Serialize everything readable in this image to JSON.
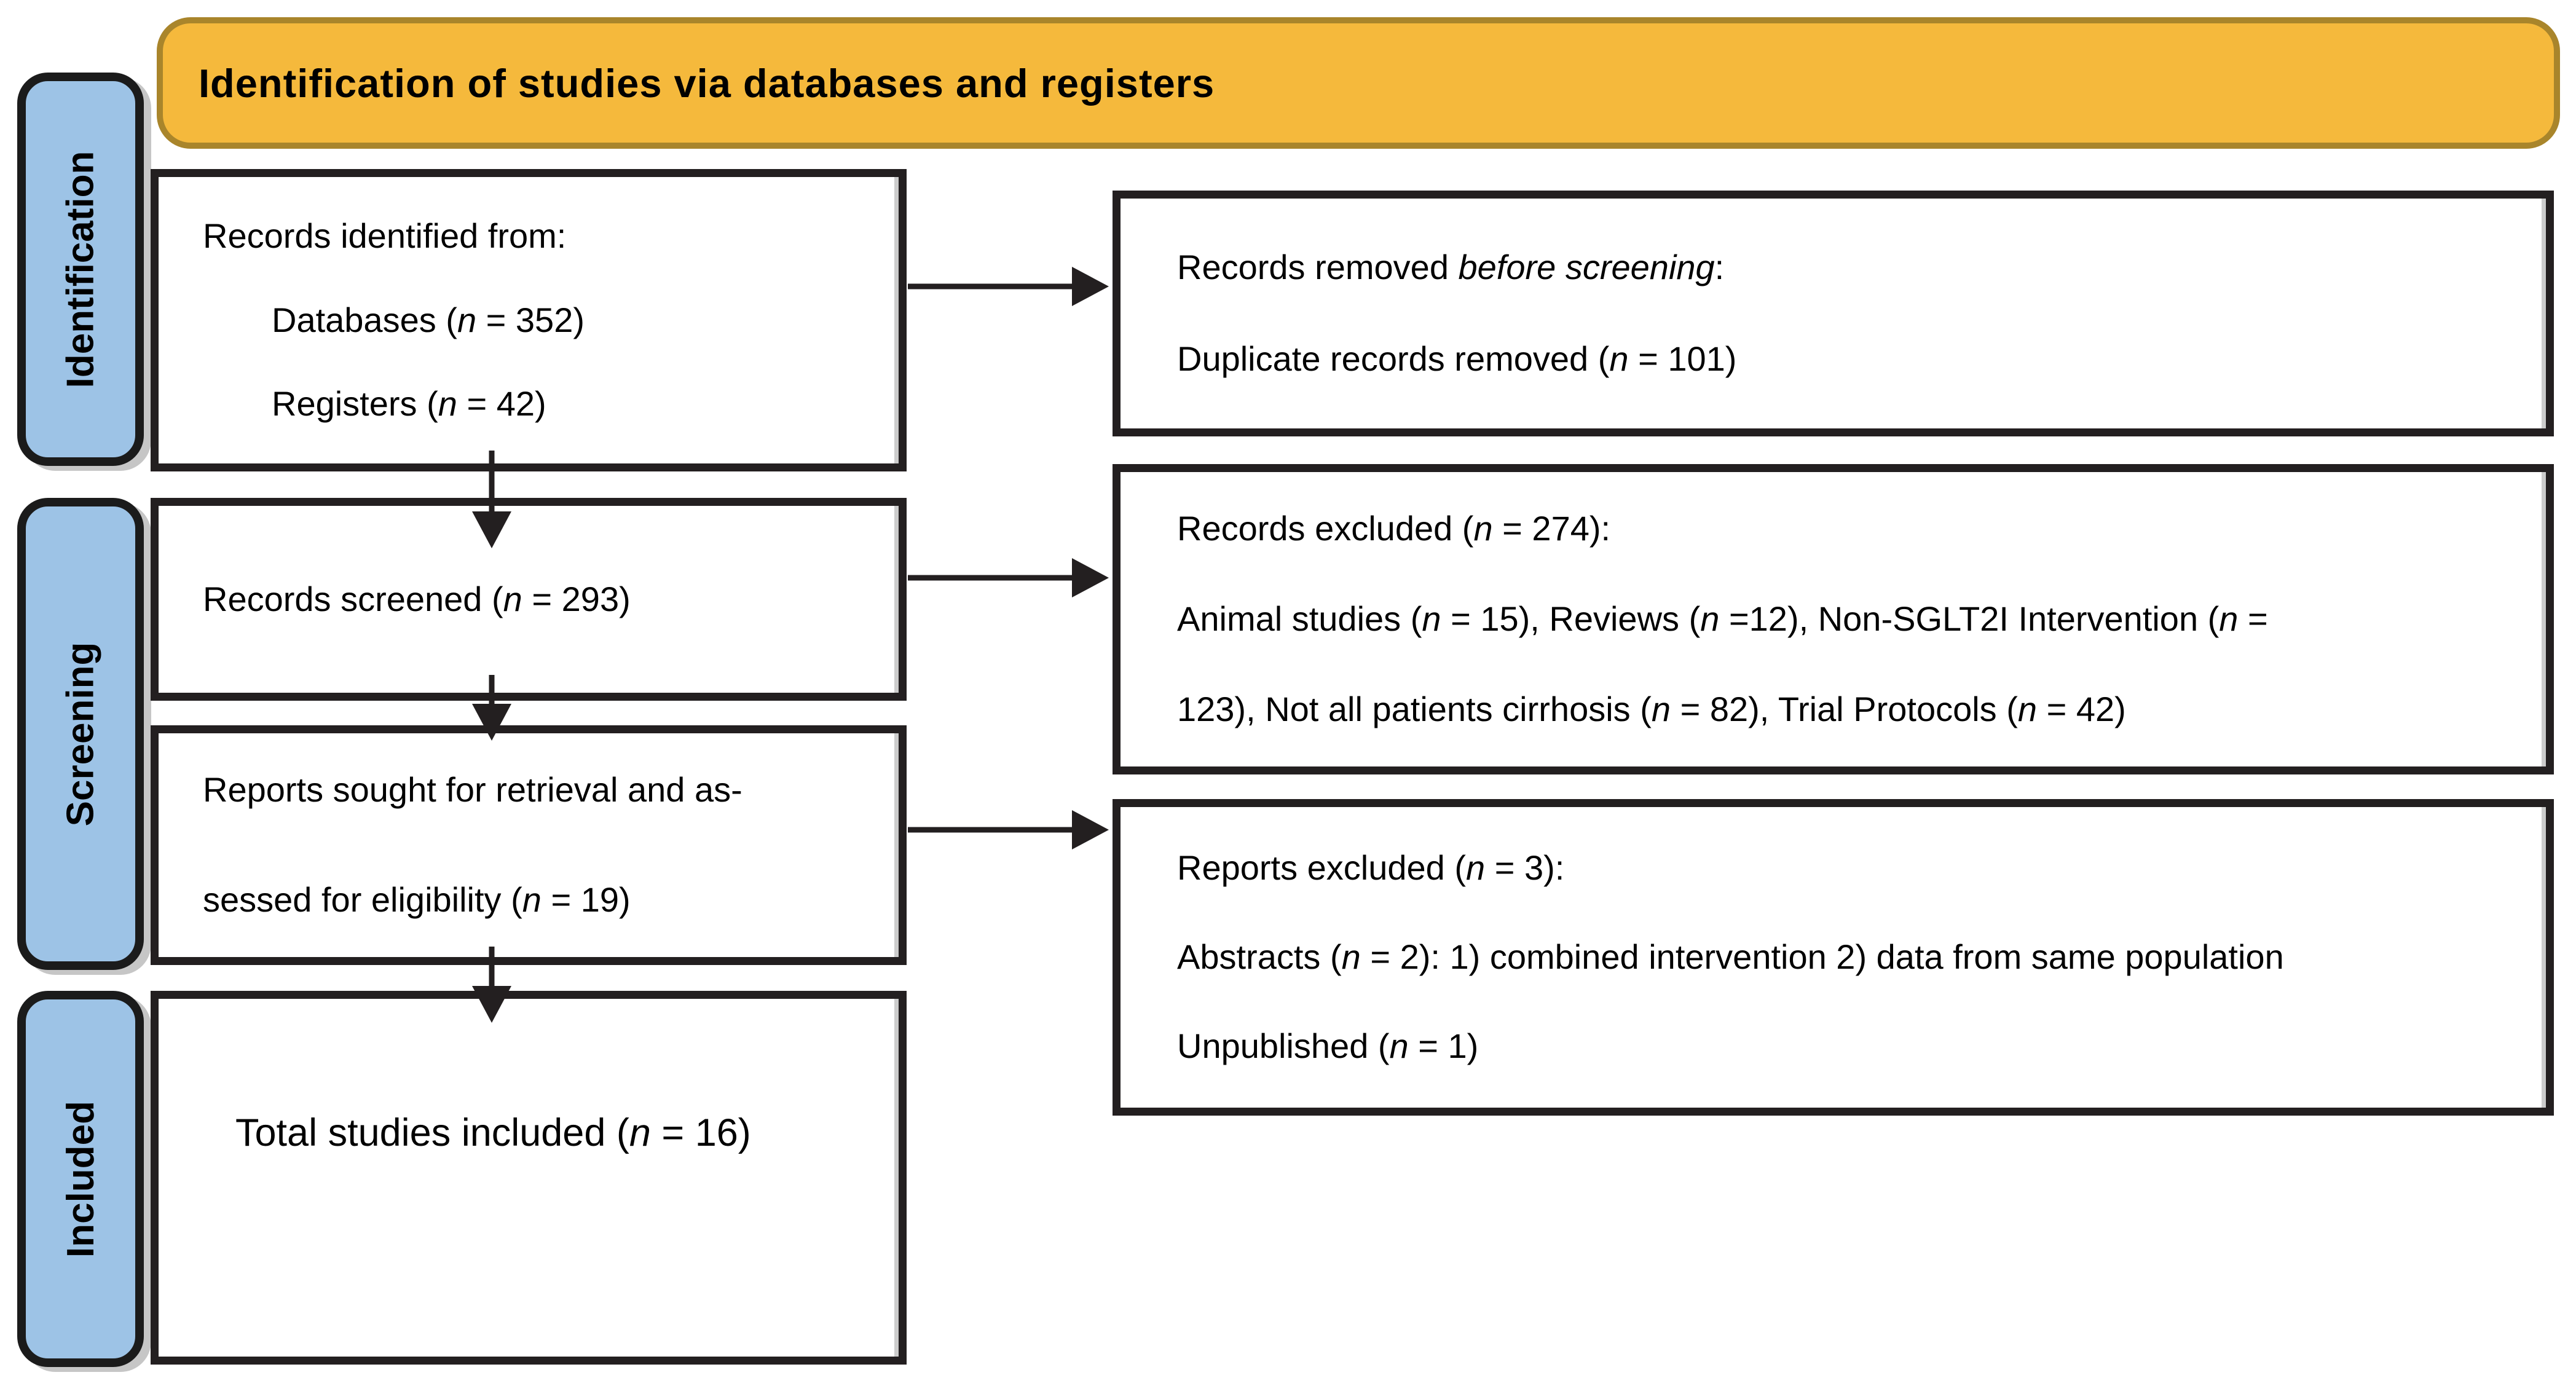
{
  "banner": {
    "title": "Identification of studies via databases and registers"
  },
  "sidebar": {
    "stages": [
      {
        "label": "Identification"
      },
      {
        "label": "Screening"
      },
      {
        "label": "Included"
      }
    ]
  },
  "boxes": {
    "records_identified": {
      "lines": [
        {
          "segs": [
            {
              "t": "Records identified from:"
            }
          ]
        },
        {
          "segs": [
            {
              "t": "Databases ("
            },
            {
              "t": "n",
              "i": true
            },
            {
              "t": " = 352)"
            }
          ]
        },
        {
          "segs": [
            {
              "t": "Registers ("
            },
            {
              "t": "n",
              "i": true
            },
            {
              "t": " = 42)"
            }
          ]
        }
      ]
    },
    "records_screened": {
      "lines": [
        {
          "segs": [
            {
              "t": "Records screened ("
            },
            {
              "t": "n",
              "i": true
            },
            {
              "t": " = 293)"
            }
          ]
        }
      ]
    },
    "reports_sought": {
      "lines": [
        {
          "segs": [
            {
              "t": "Reports sought for retrieval and as-"
            }
          ]
        },
        {
          "segs": [
            {
              "t": "sessed for eligibility ("
            },
            {
              "t": "n",
              "i": true
            },
            {
              "t": " = 19)"
            }
          ]
        }
      ]
    },
    "total_included": {
      "lines": [
        {
          "segs": [
            {
              "t": "Total studies included ("
            },
            {
              "t": "n",
              "i": true
            },
            {
              "t": " = 16)"
            }
          ]
        }
      ]
    },
    "records_removed": {
      "lines": [
        {
          "segs": [
            {
              "t": "Records removed "
            },
            {
              "t": "before screening",
              "i": true
            },
            {
              "t": ":"
            }
          ]
        },
        {
          "segs": [
            {
              "t": "Duplicate records removed ("
            },
            {
              "t": "n",
              "i": true
            },
            {
              "t": " = 101)"
            }
          ]
        }
      ]
    },
    "records_excluded": {
      "lines": [
        {
          "segs": [
            {
              "t": "Records excluded ("
            },
            {
              "t": "n",
              "i": true
            },
            {
              "t": " = 274):"
            }
          ]
        },
        {
          "segs": [
            {
              "t": "Animal studies ("
            },
            {
              "t": "n",
              "i": true
            },
            {
              "t": " = 15), Reviews ("
            },
            {
              "t": "n",
              "i": true
            },
            {
              "t": " =12), Non-SGLT2I Intervention ("
            },
            {
              "t": "n",
              "i": true
            },
            {
              "t": " ="
            }
          ]
        },
        {
          "segs": [
            {
              "t": "123), Not all patients cirrhosis ("
            },
            {
              "t": "n",
              "i": true
            },
            {
              "t": " = 82), Trial Protocols ("
            },
            {
              "t": "n",
              "i": true
            },
            {
              "t": " = 42)"
            }
          ]
        }
      ]
    },
    "reports_excluded": {
      "lines": [
        {
          "segs": [
            {
              "t": "Reports excluded ("
            },
            {
              "t": "n",
              "i": true
            },
            {
              "t": " = 3):"
            }
          ]
        },
        {
          "segs": [
            {
              "t": "Abstracts ("
            },
            {
              "t": "n",
              "i": true
            },
            {
              "t": " = 2): 1) combined intervention 2) data from same population"
            }
          ]
        },
        {
          "segs": [
            {
              "t": "Unpublished ("
            },
            {
              "t": "n",
              "i": true
            },
            {
              "t": " = 1)"
            }
          ]
        }
      ]
    }
  },
  "stats": {
    "databases": 352,
    "registers": 42,
    "duplicate_records_removed": 101,
    "records_screened": 293,
    "records_excluded": 274,
    "animal_studies": 15,
    "reviews": 12,
    "non_sglt2i_intervention": 123,
    "not_all_patients_cirrhosis": 82,
    "trial_protocols": 42,
    "reports_sought_for_retrieval": 19,
    "reports_excluded": 3,
    "abstracts": 2,
    "unpublished": 1,
    "total_studies_included": 16
  },
  "palette": {
    "banner_fill": "#F5B93C",
    "banner_border": "#A9852B",
    "stage_fill": "#9DC3E6",
    "box_border": "#231F20",
    "arrow_color": "#231F20",
    "shadow_gray": "#C6C6C6",
    "text": "#000000"
  }
}
